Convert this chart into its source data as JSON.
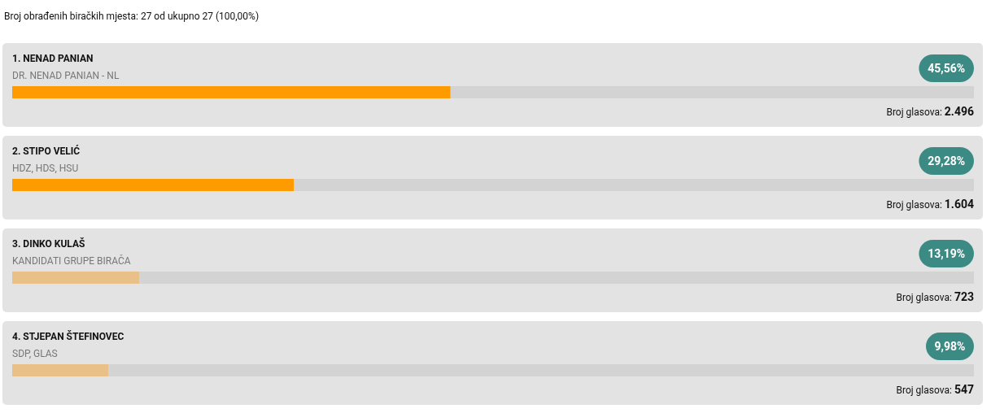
{
  "chart_data": {
    "type": "bar",
    "orientation": "horizontal",
    "title": "Broj obrađenih biračkih mjesta: 27 od ukupno 27 (100,00%)",
    "categories": [
      "1. NENAD PANIAN",
      "2. STIPO VELIĆ",
      "3. DINKO KULAŠ",
      "4. STJEPAN ŠTEFINOVEC"
    ],
    "values": [
      45.56,
      29.28,
      13.19,
      9.98
    ],
    "colors": [
      "#fe9b00",
      "#fe9b00",
      "#e8c088",
      "#e8c088"
    ],
    "value_labels": [
      "45,56%",
      "29,28%",
      "13,19%",
      "9,98%"
    ],
    "xlim": [
      0,
      100
    ],
    "annotations": [
      "DR. NENAD PANIAN - NL",
      "Broj glasova: 2.496",
      "HDZ, HDS, HSU",
      "Broj glasova: 1.604",
      "KANDIDATI GRUPE BIRAČA",
      "Broj glasova: 723",
      "SDP, GLAS",
      "Broj glasova: 547"
    ]
  }
}
